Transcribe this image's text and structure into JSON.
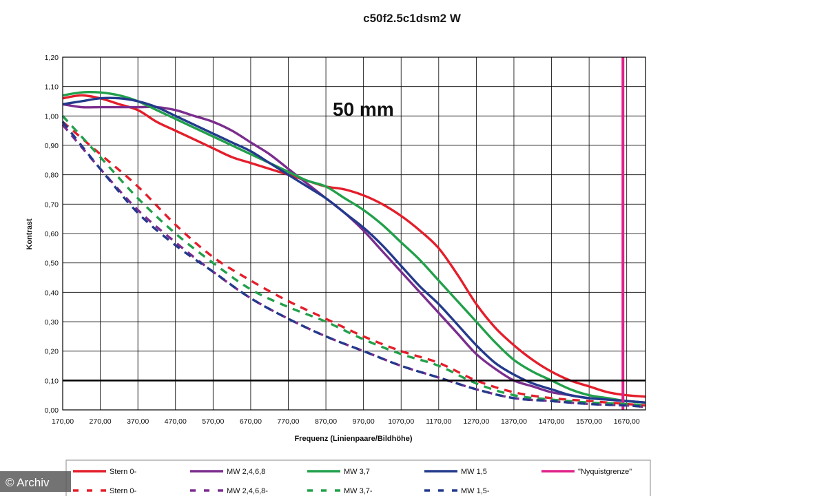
{
  "chart_data": {
    "type": "line",
    "title": "c50f2.5c1dsm2 W",
    "annotation": "50 mm",
    "xlabel": "Frequenz (Linienpaare/Bildhöhe)",
    "ylabel": "Kontrast",
    "xlim": [
      170,
      1720
    ],
    "ylim": [
      0,
      1.2
    ],
    "x_ticks": [
      "170,00",
      "270,00",
      "370,00",
      "470,00",
      "570,00",
      "670,00",
      "770,00",
      "870,00",
      "970,00",
      "1070,00",
      "1170,00",
      "1270,00",
      "1370,00",
      "1470,00",
      "1570,00",
      "1670,00"
    ],
    "y_ticks": [
      "0,00",
      "0,10",
      "0,20",
      "0,30",
      "0,40",
      "0,50",
      "0,60",
      "0,70",
      "0,80",
      "0,90",
      "1,00",
      "1,10",
      "1,20"
    ],
    "grid": true,
    "legend_position": "bottom",
    "series": [
      {
        "name": "Stern 0-",
        "color": "#e41e2b",
        "dash": false,
        "x": [
          170,
          220,
          270,
          320,
          370,
          420,
          470,
          520,
          570,
          620,
          670,
          720,
          770,
          820,
          870,
          920,
          970,
          1020,
          1070,
          1120,
          1170,
          1220,
          1270,
          1320,
          1370,
          1420,
          1470,
          1520,
          1570,
          1620,
          1670,
          1720
        ],
        "y": [
          1.06,
          1.07,
          1.06,
          1.04,
          1.02,
          0.98,
          0.95,
          0.92,
          0.89,
          0.86,
          0.84,
          0.82,
          0.8,
          0.78,
          0.76,
          0.75,
          0.73,
          0.7,
          0.66,
          0.61,
          0.55,
          0.46,
          0.36,
          0.28,
          0.22,
          0.17,
          0.13,
          0.1,
          0.08,
          0.06,
          0.05,
          0.045
        ]
      },
      {
        "name": "MW 2,4,6,8",
        "color": "#7b2d8e",
        "dash": false,
        "x": [
          170,
          220,
          270,
          320,
          370,
          420,
          470,
          520,
          570,
          620,
          670,
          720,
          770,
          820,
          870,
          920,
          970,
          1020,
          1070,
          1120,
          1170,
          1220,
          1270,
          1320,
          1370,
          1420,
          1470,
          1520,
          1570,
          1620,
          1670,
          1720
        ],
        "y": [
          1.04,
          1.03,
          1.03,
          1.03,
          1.03,
          1.03,
          1.02,
          1.0,
          0.98,
          0.95,
          0.91,
          0.87,
          0.82,
          0.77,
          0.72,
          0.67,
          0.61,
          0.54,
          0.47,
          0.4,
          0.33,
          0.26,
          0.19,
          0.14,
          0.1,
          0.08,
          0.06,
          0.05,
          0.04,
          0.035,
          0.03,
          0.025
        ]
      },
      {
        "name": "MW 3,7",
        "color": "#22a04b",
        "dash": false,
        "x": [
          170,
          220,
          270,
          320,
          370,
          420,
          470,
          520,
          570,
          620,
          670,
          720,
          770,
          820,
          870,
          920,
          970,
          1020,
          1070,
          1120,
          1170,
          1220,
          1270,
          1320,
          1370,
          1420,
          1470,
          1520,
          1570,
          1620,
          1670,
          1720
        ],
        "y": [
          1.07,
          1.08,
          1.08,
          1.07,
          1.05,
          1.02,
          0.99,
          0.96,
          0.93,
          0.9,
          0.87,
          0.84,
          0.81,
          0.78,
          0.76,
          0.72,
          0.68,
          0.63,
          0.57,
          0.51,
          0.44,
          0.37,
          0.3,
          0.23,
          0.17,
          0.13,
          0.1,
          0.07,
          0.05,
          0.04,
          0.03,
          0.025
        ]
      },
      {
        "name": "MW 1,5",
        "color": "#233a8c",
        "dash": false,
        "x": [
          170,
          220,
          270,
          320,
          370,
          420,
          470,
          520,
          570,
          620,
          670,
          720,
          770,
          820,
          870,
          920,
          970,
          1020,
          1070,
          1120,
          1170,
          1220,
          1270,
          1320,
          1370,
          1420,
          1470,
          1520,
          1570,
          1620,
          1670,
          1720
        ],
        "y": [
          1.04,
          1.05,
          1.06,
          1.06,
          1.05,
          1.03,
          1.0,
          0.97,
          0.94,
          0.91,
          0.88,
          0.84,
          0.8,
          0.76,
          0.72,
          0.67,
          0.62,
          0.56,
          0.49,
          0.42,
          0.36,
          0.29,
          0.22,
          0.16,
          0.12,
          0.09,
          0.07,
          0.05,
          0.04,
          0.035,
          0.03,
          0.025
        ]
      },
      {
        "name": "Nyquistgrenze",
        "color": "#e0218a",
        "dash": false,
        "x": [
          1660,
          1660
        ],
        "y": [
          0,
          1.2
        ]
      },
      {
        "name": "Stern 0-",
        "color": "#e41e2b",
        "dash": true,
        "x": [
          170,
          270,
          370,
          470,
          570,
          670,
          770,
          870,
          970,
          1070,
          1170,
          1270,
          1370,
          1470,
          1570,
          1670,
          1720
        ],
        "y": [
          0.98,
          0.87,
          0.76,
          0.63,
          0.52,
          0.44,
          0.37,
          0.31,
          0.25,
          0.2,
          0.16,
          0.1,
          0.06,
          0.04,
          0.03,
          0.02,
          0.015
        ]
      },
      {
        "name": "MW 2,4,6,8-",
        "color": "#7b2d8e",
        "dash": true,
        "x": [
          170,
          270,
          370,
          470,
          570,
          670,
          770,
          870,
          970,
          1070,
          1170,
          1270,
          1370,
          1470,
          1570,
          1670,
          1720
        ],
        "y": [
          0.97,
          0.82,
          0.68,
          0.57,
          0.47,
          0.38,
          0.31,
          0.25,
          0.2,
          0.15,
          0.11,
          0.07,
          0.04,
          0.03,
          0.02,
          0.015,
          0.01
        ]
      },
      {
        "name": "MW 3,7-",
        "color": "#22a04b",
        "dash": true,
        "x": [
          170,
          270,
          370,
          470,
          570,
          670,
          770,
          870,
          970,
          1070,
          1170,
          1270,
          1370,
          1470,
          1570,
          1670,
          1720
        ],
        "y": [
          1.0,
          0.86,
          0.72,
          0.6,
          0.5,
          0.41,
          0.35,
          0.3,
          0.24,
          0.19,
          0.15,
          0.09,
          0.05,
          0.035,
          0.025,
          0.02,
          0.015
        ]
      },
      {
        "name": "MW 1,5-",
        "color": "#233a8c",
        "dash": true,
        "x": [
          170,
          270,
          370,
          470,
          570,
          670,
          770,
          870,
          970,
          1070,
          1170,
          1270,
          1370,
          1470,
          1570,
          1670,
          1720
        ],
        "y": [
          0.98,
          0.82,
          0.67,
          0.56,
          0.47,
          0.38,
          0.31,
          0.25,
          0.2,
          0.15,
          0.11,
          0.07,
          0.04,
          0.03,
          0.02,
          0.015,
          0.01
        ]
      }
    ],
    "reference_line": {
      "y": 0.1,
      "color": "#000000"
    }
  },
  "legend": {
    "row1": [
      {
        "label": "Stern 0-",
        "color": "#e41e2b",
        "dash": false
      },
      {
        "label": "MW 2,4,6,8",
        "color": "#7b2d8e",
        "dash": false
      },
      {
        "label": "MW 3,7",
        "color": "#22a04b",
        "dash": false
      },
      {
        "label": "MW 1,5",
        "color": "#233a8c",
        "dash": false
      },
      {
        "label": "\"Nyquistgrenze\"",
        "color": "#e0218a",
        "dash": false
      }
    ],
    "row2": [
      {
        "label": "Stern 0-",
        "color": "#e41e2b",
        "dash": true
      },
      {
        "label": "MW 2,4,6,8-",
        "color": "#7b2d8e",
        "dash": true
      },
      {
        "label": "MW 3,7-",
        "color": "#22a04b",
        "dash": true
      },
      {
        "label": "MW 1,5-",
        "color": "#233a8c",
        "dash": true
      }
    ]
  },
  "credit": "© Archiv"
}
